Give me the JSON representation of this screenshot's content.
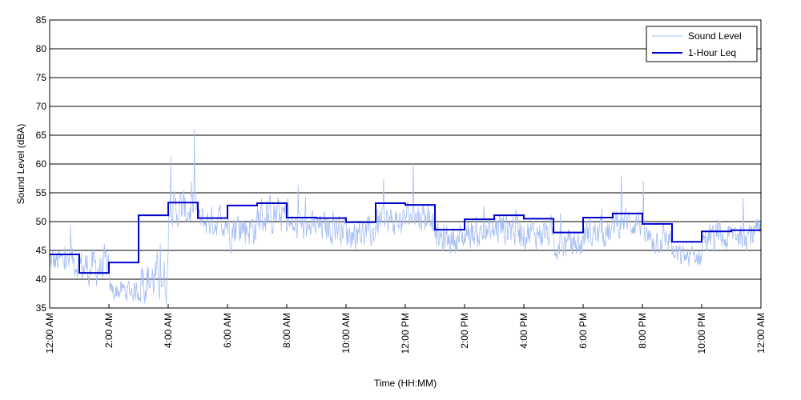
{
  "chart_data": {
    "type": "line",
    "title": "",
    "xlabel": "Time (HH:MM)",
    "ylabel": "Sound Level (dBA)",
    "ylim": [
      35,
      85
    ],
    "yticks": [
      35,
      40,
      45,
      50,
      55,
      60,
      65,
      70,
      75,
      80,
      85
    ],
    "xlim_hours": [
      0,
      24
    ],
    "xtick_hours": [
      0,
      2,
      4,
      6,
      8,
      10,
      12,
      14,
      16,
      18,
      20,
      22,
      24
    ],
    "xtick_labels": [
      "12:00 AM",
      "2:00 AM",
      "4:00 AM",
      "6:00 AM",
      "8:00 AM",
      "10:00 AM",
      "12:00 PM",
      "2:00 PM",
      "4:00 PM",
      "6:00 PM",
      "8:00 PM",
      "10:00 PM",
      "12:00 AM"
    ],
    "grid": "horizontal",
    "legend_position": "top-right",
    "series": [
      {
        "name": "Sound Level",
        "color": "#a4bdf2",
        "style": "thin-line",
        "hourly_mean": [
          43,
          42,
          38,
          40,
          52,
          50,
          49,
          51,
          49,
          49,
          48,
          50,
          51,
          47,
          48,
          49,
          48,
          46,
          48,
          50,
          47,
          44,
          47,
          48
        ],
        "hourly_range": [
          4,
          5,
          3,
          6,
          5,
          4,
          5,
          5,
          4,
          4,
          4,
          4,
          4,
          4,
          4,
          5,
          4,
          4,
          4,
          4,
          4,
          3,
          4,
          4
        ]
      },
      {
        "name": "1-Hour Leq",
        "color": "#0000cc",
        "style": "step",
        "hours": [
          0,
          1,
          2,
          3,
          4,
          5,
          6,
          7,
          8,
          9,
          10,
          11,
          12,
          13,
          14,
          15,
          16,
          17,
          18,
          19,
          20,
          21,
          22,
          23
        ],
        "values": [
          44.3,
          41.1,
          42.9,
          51.1,
          53.3,
          50.6,
          52.8,
          53.2,
          50.7,
          50.6,
          49.9,
          53.2,
          52.9,
          48.6,
          50.4,
          51.1,
          50.5,
          48.1,
          50.7,
          51.4,
          49.6,
          46.5,
          48.3,
          48.5
        ]
      }
    ]
  }
}
